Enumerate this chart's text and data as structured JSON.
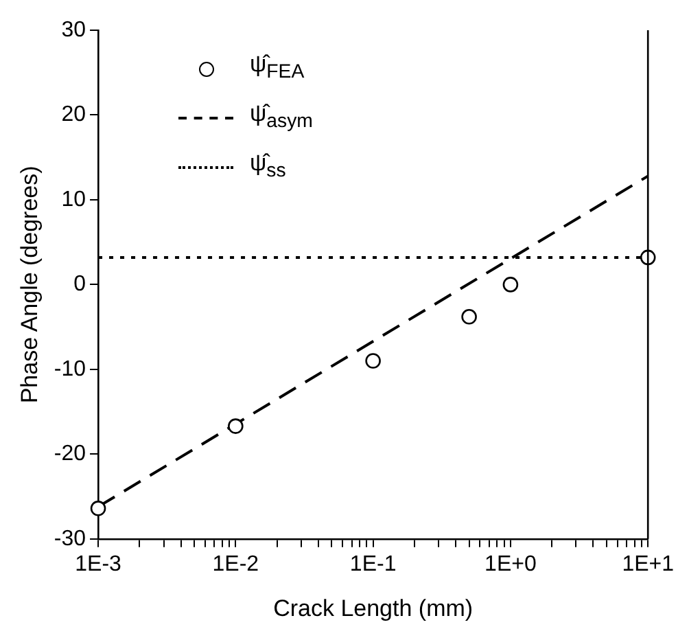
{
  "chart_data": {
    "type": "scatter",
    "xlabel": "Crack Length (mm)",
    "ylabel": "Phase Angle (degrees)",
    "log": "x",
    "grid": false,
    "legend": "top left",
    "xlim": [
      0.001,
      10
    ],
    "ylim": [
      -30,
      30
    ],
    "yticks": [
      -30,
      -20,
      -10,
      0,
      10,
      20,
      30
    ],
    "xticks": [
      {
        "value": 0.001,
        "label": "1E-3"
      },
      {
        "value": 0.002,
        "label": null
      },
      {
        "value": 0.003,
        "label": null
      },
      {
        "value": 0.004,
        "label": null
      },
      {
        "value": 0.005,
        "label": null
      },
      {
        "value": 0.006,
        "label": null
      },
      {
        "value": 0.007,
        "label": null
      },
      {
        "value": 0.008,
        "label": null
      },
      {
        "value": 0.009,
        "label": null
      },
      {
        "value": 0.01,
        "label": "1E-2"
      },
      {
        "value": 0.02,
        "label": null
      },
      {
        "value": 0.03,
        "label": null
      },
      {
        "value": 0.04,
        "label": null
      },
      {
        "value": 0.05,
        "label": null
      },
      {
        "value": 0.06,
        "label": null
      },
      {
        "value": 0.07,
        "label": null
      },
      {
        "value": 0.08,
        "label": null
      },
      {
        "value": 0.09,
        "label": null
      },
      {
        "value": 0.1,
        "label": "1E-1"
      },
      {
        "value": 0.2,
        "label": null
      },
      {
        "value": 0.3,
        "label": null
      },
      {
        "value": 0.4,
        "label": null
      },
      {
        "value": 0.5,
        "label": null
      },
      {
        "value": 0.6,
        "label": null
      },
      {
        "value": 0.7,
        "label": null
      },
      {
        "value": 0.8,
        "label": null
      },
      {
        "value": 0.9,
        "label": null
      },
      {
        "value": 1,
        "label": "1E+0"
      },
      {
        "value": 2,
        "label": null
      },
      {
        "value": 3,
        "label": null
      },
      {
        "value": 4,
        "label": null
      },
      {
        "value": 5,
        "label": null
      },
      {
        "value": 6,
        "label": null
      },
      {
        "value": 7,
        "label": null
      },
      {
        "value": 8,
        "label": null
      },
      {
        "value": 9,
        "label": null
      },
      {
        "value": 10,
        "label": "1E+1"
      }
    ],
    "series": [
      {
        "type": "scatter",
        "name": "ψ̂$_{FEA}$",
        "color": "#000000",
        "marker": "circle",
        "x": [
          0.001,
          0.01,
          0.1,
          0.5,
          1,
          10
        ],
        "values": [
          -26.4,
          -16.7,
          -9,
          -3.8,
          0,
          3.2
        ]
      },
      {
        "type": "line",
        "name": "ψ̂$_{asym}$",
        "color": "#000000",
        "marker": "none",
        "line_style": "dashed",
        "x": [
          0.001,
          10
        ],
        "values": [
          -26.2,
          12.8
        ]
      },
      {
        "type": "line",
        "name": "ψ̂$_{ss}$",
        "color": "#000000",
        "marker": "none",
        "line_style": "dotted",
        "x": [
          0.001,
          10
        ],
        "values": [
          3.2,
          3.2
        ]
      }
    ]
  }
}
